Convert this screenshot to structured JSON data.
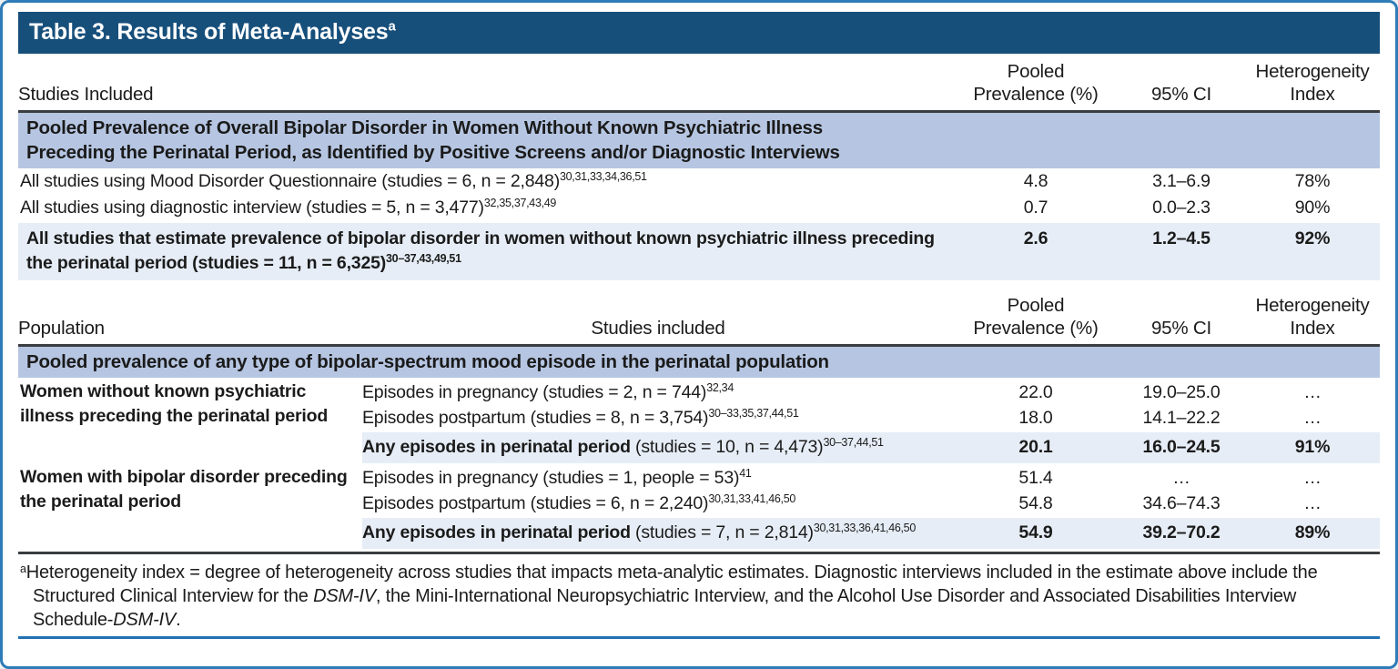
{
  "colors": {
    "title_bar_bg": "#174f7b",
    "section_band_bg": "#b6c6e2",
    "highlight_row_bg": "#e6edf6",
    "frame_border": "#2e7cb8",
    "dark_rule": "#3a3d40",
    "bottom_rule_blue": "#2271b3",
    "title_text": "#ffffff",
    "body_text": "#1b1b1b"
  },
  "title": {
    "text": "Table 3. Results of Meta-Analyses",
    "superscript": "a"
  },
  "column_headers": {
    "pooled_line1": "Pooled",
    "pooled_line2": "Prevalence (%)",
    "ci": "95% CI",
    "heterogeneity_line1": "Heterogeneity",
    "heterogeneity_line2": "Index"
  },
  "table1": {
    "row_header": "Studies Included",
    "section_header_line1": "Pooled Prevalence of Overall Bipolar Disorder in Women Without Known Psychiatric Illness",
    "section_header_line2": "Preceding the Perinatal Period, as Identified by Positive Screens and/or Diagnostic Interviews",
    "rows": [
      {
        "label": "All studies using Mood Disorder Questionnaire (studies = 6, n = 2,848)",
        "refs": "30,31,33,34,36,51",
        "prevalence": "4.8",
        "ci": "3.1–6.9",
        "het": "78%",
        "highlight": false
      },
      {
        "label": "All studies using diagnostic interview (studies = 5, n = 3,477)",
        "refs": "32,35,37,43,49",
        "prevalence": "0.7",
        "ci": "0.0–2.3",
        "het": "90%",
        "highlight": false
      },
      {
        "label": "All studies that estimate prevalence of bipolar disorder in women without known psychiatric illness preceding the perinatal period (studies = 11, n = 6,325)",
        "refs": "30–37,43,49,51",
        "prevalence": "2.6",
        "ci": "1.2–4.5",
        "het": "92%",
        "highlight": true
      }
    ]
  },
  "table2": {
    "population_header": "Population",
    "studies_header": "Studies included",
    "section_header": "Pooled prevalence of any type of bipolar-spectrum mood episode in the perinatal population",
    "groups": [
      {
        "population": "Women without known psychiatric illness preceding the perinatal period",
        "rows": [
          {
            "label": "Episodes in pregnancy (studies = 2, n = 744)",
            "refs": "32,34",
            "prevalence": "22.0",
            "ci": "19.0–25.0",
            "het": "…",
            "highlight": false
          },
          {
            "label": "Episodes postpartum (studies = 8, n = 3,754)",
            "refs": "30–33,35,37,44,51",
            "prevalence": "18.0",
            "ci": "14.1–22.2",
            "het": "…",
            "highlight": false
          },
          {
            "bold_prefix": "Any episodes in perinatal period",
            "label": " (studies = 10, n = 4,473)",
            "refs": "30–37,44,51",
            "prevalence": "20.1",
            "ci": "16.0–24.5",
            "het": "91%",
            "highlight": true
          }
        ]
      },
      {
        "population": "Women with bipolar disorder preceding the perinatal period",
        "rows": [
          {
            "label": "Episodes in pregnancy (studies = 1, people = 53)",
            "refs": "41",
            "prevalence": "51.4",
            "ci": "…",
            "het": "…",
            "highlight": false
          },
          {
            "label": "Episodes postpartum (studies = 6, n = 2,240)",
            "refs": "30,31,33,41,46,50",
            "prevalence": "54.8",
            "ci": "34.6–74.3",
            "het": "…",
            "highlight": false
          },
          {
            "bold_prefix": "Any episodes in perinatal period",
            "label": " (studies = 7, n = 2,814)",
            "refs": "30,31,33,36,41,46,50",
            "prevalence": "54.9",
            "ci": "39.2–70.2",
            "het": "89%",
            "highlight": true
          }
        ]
      }
    ]
  },
  "footnote": {
    "marker": "a",
    "segments": [
      {
        "text": "Heterogeneity index = degree of heterogeneity across studies that impacts meta-analytic estimates. Diagnostic interviews included in the estimate above include the Structured Clinical Interview for the ",
        "italic": false
      },
      {
        "text": "DSM-IV",
        "italic": true
      },
      {
        "text": ", the Mini-International Neuropsychiatric Interview, and the Alcohol Use Disorder and Associated Disabilities Interview Schedule-",
        "italic": false
      },
      {
        "text": "DSM-IV",
        "italic": true
      },
      {
        "text": ".",
        "italic": false
      }
    ]
  }
}
